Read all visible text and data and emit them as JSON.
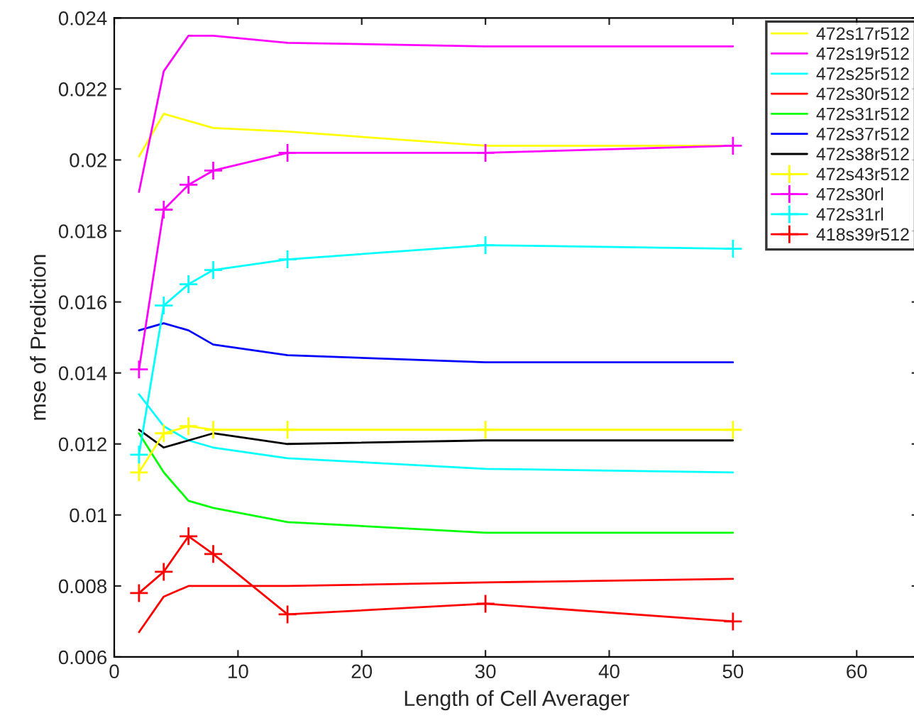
{
  "chart_data": {
    "type": "line",
    "xlabel": "Length of Cell Averager",
    "ylabel": "mse of Prediction",
    "x": [
      2,
      4,
      6,
      8,
      14,
      30,
      50
    ],
    "xlim": [
      0,
      65
    ],
    "xticks": [
      0,
      10,
      20,
      30,
      40,
      50,
      60
    ],
    "ylim": [
      0.006,
      0.024
    ],
    "yticks": [
      0.006,
      0.008,
      0.01,
      0.012,
      0.014,
      0.016,
      0.018,
      0.02,
      0.022,
      0.024
    ],
    "grid": false,
    "legend": "top right",
    "line_style": "solid",
    "series": [
      {
        "name": "472s17r512",
        "color": "#ffff00",
        "marker": "none",
        "values": [
          0.0201,
          0.0213,
          0.0211,
          0.0209,
          0.0208,
          0.0204,
          0.0204
        ]
      },
      {
        "name": "472s19r512",
        "color": "#ff00ff",
        "marker": "none",
        "values": [
          0.0191,
          0.0225,
          0.0235,
          0.0235,
          0.0233,
          0.0232,
          0.0232
        ]
      },
      {
        "name": "472s25r512",
        "color": "#00ffff",
        "marker": "none",
        "values": [
          0.0134,
          0.0125,
          0.0121,
          0.0119,
          0.0116,
          0.0113,
          0.0112
        ]
      },
      {
        "name": "472s30r512",
        "color": "#ff0000",
        "marker": "none",
        "values": [
          0.0067,
          0.0077,
          0.008,
          0.008,
          0.008,
          0.0081,
          0.0082
        ]
      },
      {
        "name": "472s31r512",
        "color": "#00ff00",
        "marker": "none",
        "values": [
          0.0123,
          0.0112,
          0.0104,
          0.0102,
          0.0098,
          0.0095,
          0.0095
        ]
      },
      {
        "name": "472s37r512",
        "color": "#0000ff",
        "marker": "none",
        "values": [
          0.0152,
          0.0154,
          0.0152,
          0.0148,
          0.0145,
          0.0143,
          0.0143
        ]
      },
      {
        "name": "472s38r512",
        "color": "#000000",
        "marker": "none",
        "values": [
          0.0124,
          0.0119,
          0.0121,
          0.0123,
          0.012,
          0.0121,
          0.0121
        ]
      },
      {
        "name": "472s43r512",
        "color": "#ffff00",
        "marker": "cross",
        "values": [
          0.0112,
          0.0123,
          0.0125,
          0.0124,
          0.0124,
          0.0124,
          0.0124
        ]
      },
      {
        "name": "472s30rl",
        "color": "#ff00ff",
        "marker": "cross",
        "values": [
          0.0141,
          0.0186,
          0.0193,
          0.0197,
          0.0202,
          0.0202,
          0.0204
        ]
      },
      {
        "name": "472s31rl",
        "color": "#00ffff",
        "marker": "cross",
        "values": [
          0.0117,
          0.0159,
          0.0165,
          0.0169,
          0.0172,
          0.0176,
          0.0175
        ]
      },
      {
        "name": "418s39r512",
        "color": "#ff0000",
        "marker": "cross",
        "values": [
          0.0078,
          0.0084,
          0.0094,
          0.0089,
          0.0072,
          0.0075,
          0.007
        ]
      }
    ]
  }
}
